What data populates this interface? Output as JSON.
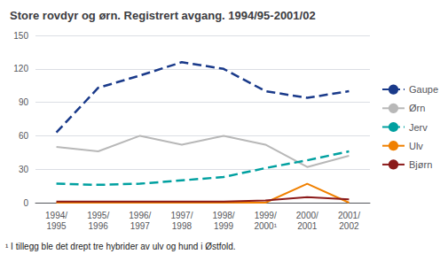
{
  "chart_data": {
    "type": "line",
    "title": "Store rovdyr og ørn. Registrert avgang. 1994/95-2001/02",
    "annotations": [
      "¹ I tillegg ble det drept tre hybrider av ulv og hund i Østfold."
    ],
    "categories": [
      "1994/\n1995",
      "1995/\n1996",
      "1996/\n1997",
      "1997/\n1998",
      "1998/\n1999",
      "1999/\n2000¹",
      "2000/\n2001",
      "2001/\n2002"
    ],
    "series": [
      {
        "name": "Gaupe",
        "color": "#1a3a8a",
        "line_style": "dashed",
        "values": [
          63,
          103,
          114,
          126,
          120,
          100,
          94,
          100
        ]
      },
      {
        "name": "Ørn",
        "color": "#b8b8b8",
        "line_style": "solid",
        "values": [
          50,
          46,
          60,
          52,
          60,
          52,
          32,
          42
        ]
      },
      {
        "name": "Jerv",
        "color": "#00a0a0",
        "line_style": "dashed",
        "values": [
          17,
          16,
          17,
          20,
          23,
          31,
          38,
          46
        ]
      },
      {
        "name": "Ulv",
        "color": "#f08000",
        "line_style": "solid",
        "values": [
          0,
          0,
          0,
          0,
          0,
          0,
          17,
          0
        ]
      },
      {
        "name": "Bjørn",
        "color": "#8b1a1a",
        "line_style": "solid",
        "values": [
          1,
          1,
          1,
          1,
          1,
          2,
          5,
          3
        ]
      }
    ],
    "ylim": [
      0,
      150
    ],
    "yticks": [
      0,
      30,
      60,
      90,
      120,
      150
    ],
    "grid": true,
    "legend": "right"
  }
}
